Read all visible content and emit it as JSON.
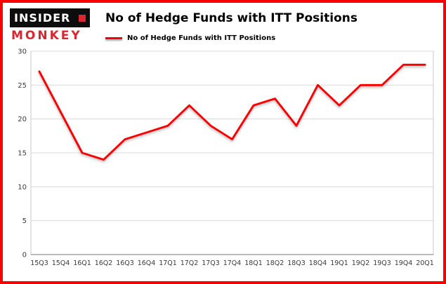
{
  "header": {
    "logo_line1": "INSIDER",
    "logo_line2": "MONKEY",
    "title": "No of Hedge Funds with ITT Positions",
    "legend_label": "No of Hedge Funds with ITT Positions"
  },
  "colors": {
    "frame_border": "#fa0000",
    "line": "#fa0000",
    "logo_red": "#d7282f",
    "grid": "#d9d9d9",
    "plot_border": "#c8c8c8",
    "axis_line": "#7a7a7a",
    "axis_text": "#3a3a3a"
  },
  "chart_data": {
    "type": "line",
    "title": "No of Hedge Funds with ITT Positions",
    "categories": [
      "15Q3",
      "15Q4",
      "16Q1",
      "16Q2",
      "16Q3",
      "16Q4",
      "17Q1",
      "17Q2",
      "17Q3",
      "17Q4",
      "18Q1",
      "18Q2",
      "18Q3",
      "18Q4",
      "19Q1",
      "19Q2",
      "19Q3",
      "19Q4",
      "20Q1"
    ],
    "values": [
      27,
      21,
      15,
      14,
      17,
      18,
      19,
      22,
      19,
      17,
      22,
      23,
      19,
      25,
      22,
      25,
      25,
      28,
      28
    ],
    "xlabel": "",
    "ylabel": "",
    "ylim": [
      0,
      30
    ],
    "yticks": [
      0,
      5,
      10,
      15,
      20,
      25,
      30
    ],
    "legend": [
      "No of Hedge Funds with ITT Positions"
    ],
    "legend_position": "top-left",
    "grid": true
  }
}
